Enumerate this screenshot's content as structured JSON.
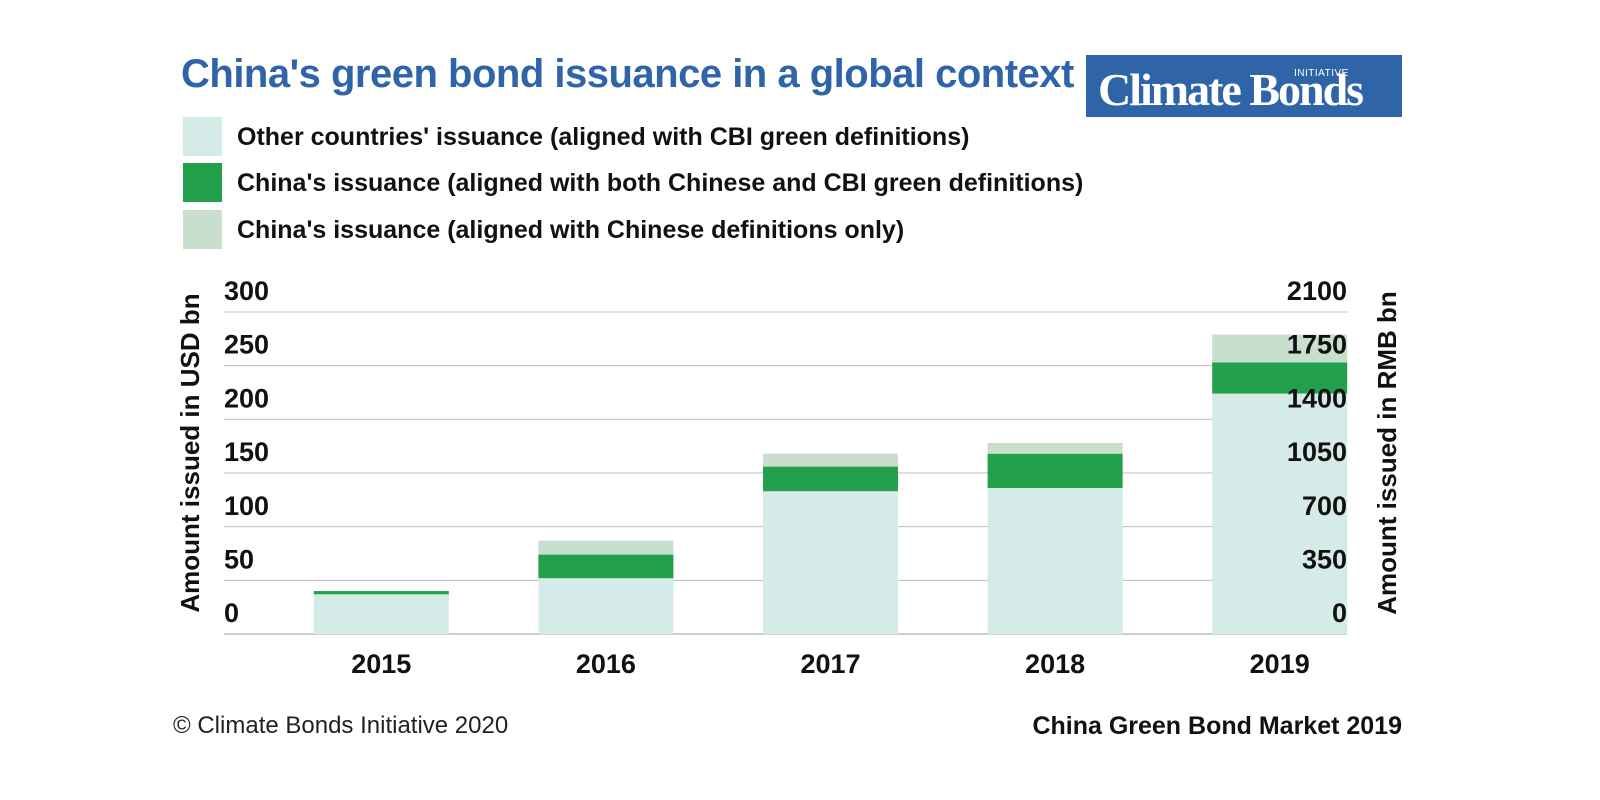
{
  "header": {
    "title": "China's green bond issuance in a global context",
    "logo_text": "Climate Bonds",
    "logo_small_text": "INITIATIVE"
  },
  "legend": [
    {
      "label": "Other countries' issuance (aligned with CBI green definitions)",
      "color": "#d5ebe7"
    },
    {
      "label": "China's issuance (aligned with both Chinese and CBI green definitions)",
      "color": "#22a04b"
    },
    {
      "label": "China's issuance (aligned with Chinese definitions only)",
      "color": "#c7dfcc"
    }
  ],
  "footer": {
    "copyright": "© Climate Bonds Initiative 2020",
    "report": "China Green Bond Market 2019"
  },
  "chart_data": {
    "type": "bar",
    "stacked": true,
    "categories": [
      "2015",
      "2016",
      "2017",
      "2018",
      "2019"
    ],
    "series": [
      {
        "name": "Other countries' issuance (aligned with CBI green definitions)",
        "values": [
          37,
          52,
          133,
          136,
          224
        ],
        "color": "#d5ebe7"
      },
      {
        "name": "China's issuance (aligned with both Chinese and CBI green definitions)",
        "values": [
          3,
          22,
          23,
          32,
          29
        ],
        "color": "#22a04b"
      },
      {
        "name": "China's issuance (aligned with Chinese definitions only)",
        "values": [
          0,
          13,
          12,
          10,
          26
        ],
        "color": "#c7dfcc"
      }
    ],
    "ylabel": "Amount issued in USD bn",
    "y2label": "Amount issued in RMB bn",
    "ylim": [
      0,
      300
    ],
    "yticks": [
      "300",
      "250",
      "200",
      "150",
      "100",
      "50",
      "0"
    ],
    "y2ticks": [
      "2100",
      "1750",
      "1400",
      "1050",
      "700",
      "350",
      "0"
    ],
    "grid": true
  }
}
